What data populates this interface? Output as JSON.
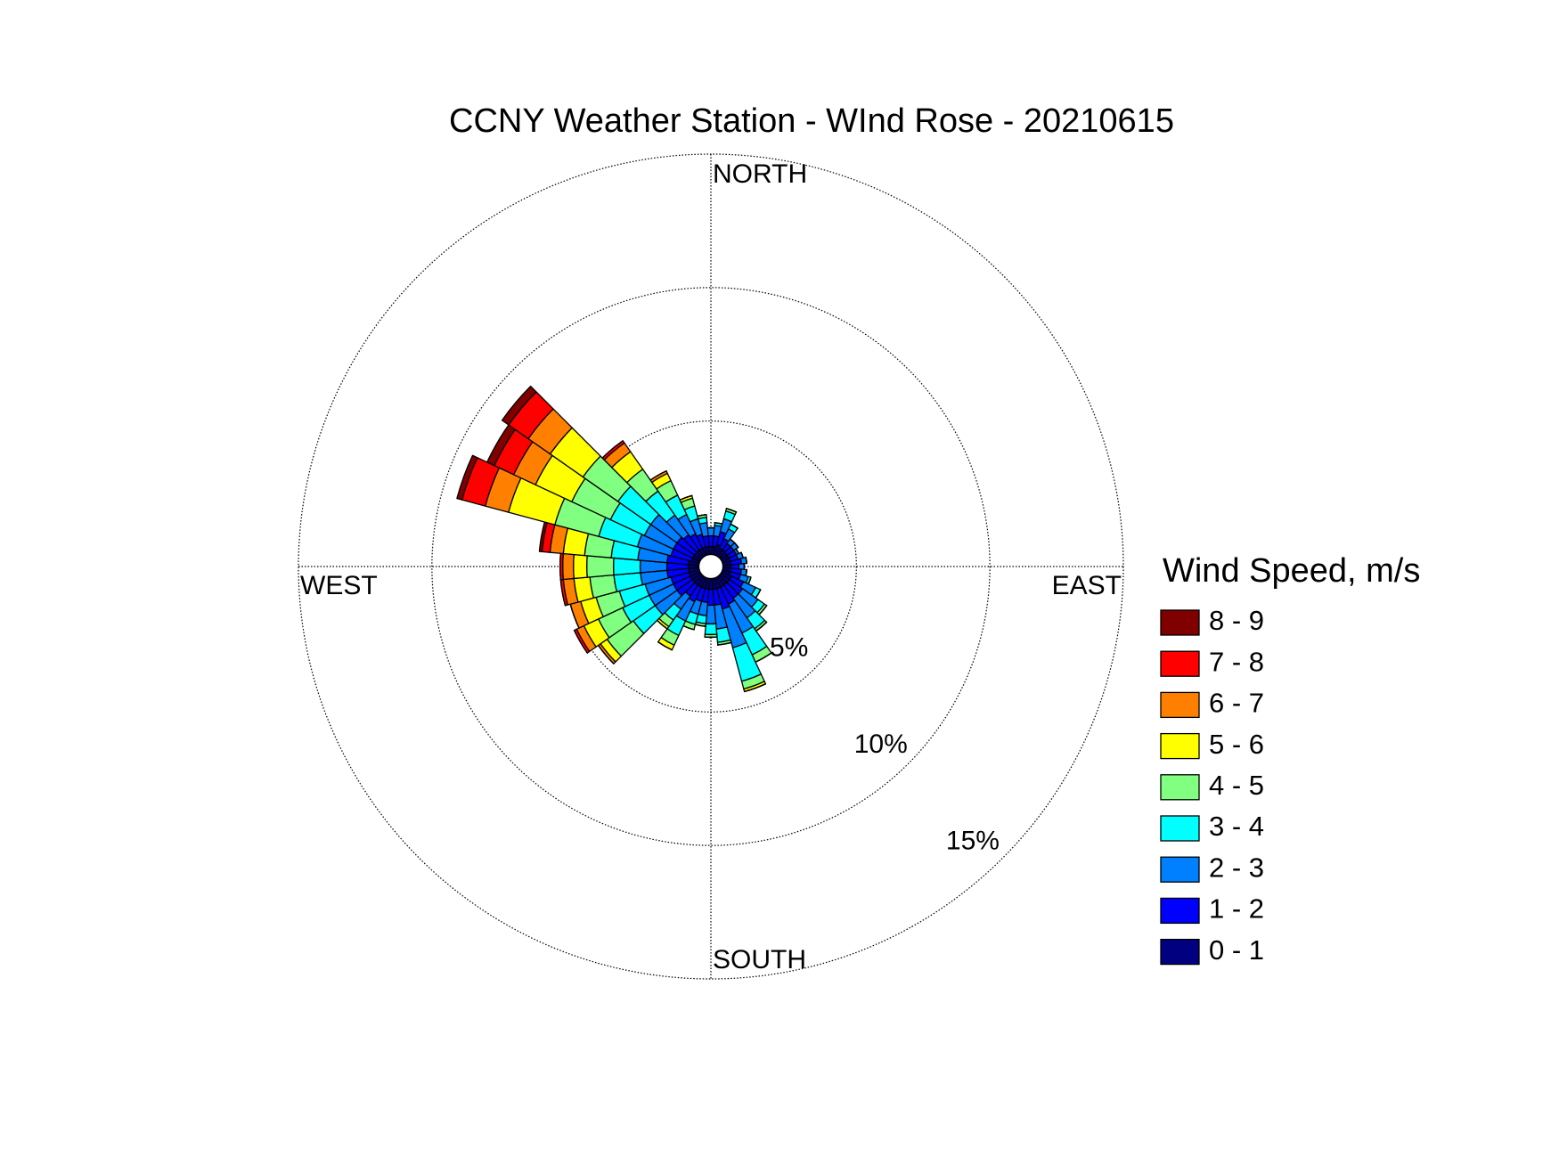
{
  "chart_data": {
    "type": "windrose",
    "title": "CCNY Weather Station - WInd Rose - 20210615",
    "direction_labels": [
      "NORTH",
      "EAST",
      "SOUTH",
      "WEST"
    ],
    "legend_title": "Wind Speed, m/s",
    "x": [
      0,
      10,
      20,
      30,
      40,
      50,
      60,
      70,
      80,
      90,
      100,
      110,
      120,
      130,
      140,
      150,
      160,
      170,
      180,
      190,
      200,
      210,
      220,
      230,
      240,
      250,
      260,
      270,
      280,
      290,
      300,
      310,
      320,
      330,
      340,
      350
    ],
    "rlim": [
      0,
      15
    ],
    "rticks": [
      {
        "value": 5,
        "label": "5%"
      },
      {
        "value": 10,
        "label": "10%"
      },
      {
        "value": 15,
        "label": "15%"
      }
    ],
    "series": [
      {
        "name": "0 - 1",
        "color": "#000080",
        "values": [
          0.3,
          0.3,
          0.4,
          0.3,
          0.3,
          0.3,
          0.3,
          0.3,
          0.3,
          0.3,
          0.3,
          0.3,
          0.4,
          0.4,
          0.4,
          0.4,
          0.4,
          0.4,
          0.4,
          0.4,
          0.4,
          0.4,
          0.4,
          0.4,
          0.4,
          0.4,
          0.4,
          0.4,
          0.4,
          0.3,
          0.3,
          0.3,
          0.3,
          0.3,
          0.3,
          0.3
        ]
      },
      {
        "name": "1 - 2",
        "color": "#0000ff",
        "values": [
          0.4,
          0.4,
          0.5,
          0.4,
          0.3,
          0.3,
          0.3,
          0.3,
          0.4,
          0.3,
          0.4,
          0.4,
          0.5,
          0.6,
          0.6,
          0.7,
          0.8,
          0.6,
          0.6,
          0.5,
          0.5,
          0.6,
          0.5,
          0.7,
          0.7,
          0.7,
          0.8,
          0.8,
          0.8,
          0.8,
          0.8,
          0.8,
          0.7,
          0.6,
          0.5,
          0.4
        ]
      },
      {
        "name": "2 - 3",
        "color": "#0080ff",
        "values": [
          0.3,
          0.4,
          0.5,
          0.4,
          0.2,
          0.2,
          0.1,
          0.2,
          0.2,
          0.2,
          0.2,
          0.3,
          0.5,
          0.7,
          0.9,
          1.2,
          1.5,
          0.9,
          0.7,
          0.5,
          0.5,
          0.8,
          0.6,
          1.0,
          1.0,
          1.0,
          1.0,
          1.0,
          1.1,
          1.3,
          1.2,
          1.2,
          0.9,
          0.8,
          0.6,
          0.5
        ]
      },
      {
        "name": "3 - 4",
        "color": "#00ffff",
        "values": [
          0,
          0.1,
          0.3,
          0.2,
          0,
          0,
          0,
          0,
          0,
          0,
          0,
          0.1,
          0.2,
          0.3,
          0.5,
          0.9,
          1.3,
          0.5,
          0.4,
          0.3,
          0.4,
          0.6,
          0.5,
          1.0,
          1.1,
          1.0,
          1.0,
          1.0,
          1.0,
          1.5,
          1.4,
          1.5,
          1.1,
          0.8,
          0.5,
          0.2
        ]
      },
      {
        "name": "4 - 5",
        "color": "#80ff80",
        "values": [
          0,
          0,
          0.1,
          0,
          0,
          0,
          0,
          0,
          0,
          0,
          0,
          0,
          0,
          0.1,
          0.1,
          0.3,
          0.3,
          0.1,
          0.1,
          0.1,
          0.2,
          0.4,
          0.3,
          1.2,
          1.0,
          0.9,
          0.9,
          1.0,
          1.0,
          1.7,
          1.6,
          1.6,
          1.0,
          0.6,
          0.3,
          0.1
        ]
      },
      {
        "name": "5 - 6",
        "color": "#ffff00",
        "values": [
          0,
          0,
          0,
          0,
          0,
          0,
          0,
          0,
          0,
          0,
          0,
          0,
          0,
          0,
          0,
          0,
          0.1,
          0,
          0,
          0,
          0,
          0.2,
          0.1,
          0.3,
          0.6,
          0.6,
          0.6,
          0.5,
          0.8,
          1.8,
          1.5,
          1.5,
          0.8,
          0.3,
          0.1,
          0
        ]
      },
      {
        "name": "6 - 7",
        "color": "#ff8000",
        "values": [
          0,
          0,
          0,
          0,
          0,
          0,
          0,
          0,
          0,
          0,
          0,
          0,
          0,
          0,
          0,
          0,
          0,
          0,
          0,
          0,
          0,
          0,
          0,
          0.1,
          0.3,
          0.4,
          0.4,
          0.4,
          0.5,
          0.9,
          0.9,
          1.0,
          0.4,
          0.1,
          0,
          0
        ]
      },
      {
        "name": "7 - 8",
        "color": "#ff0000",
        "values": [
          0,
          0,
          0,
          0,
          0,
          0,
          0,
          0,
          0,
          0,
          0,
          0,
          0,
          0,
          0,
          0,
          0,
          0,
          0,
          0,
          0,
          0,
          0,
          0,
          0.1,
          0,
          0.1,
          0.1,
          0.3,
          0.9,
          0.8,
          0.9,
          0.1,
          0,
          0,
          0
        ]
      },
      {
        "name": "8 - 9",
        "color": "#800000",
        "values": [
          0,
          0,
          0,
          0,
          0,
          0,
          0,
          0,
          0,
          0,
          0,
          0,
          0,
          0,
          0,
          0,
          0,
          0,
          0,
          0,
          0,
          0,
          0,
          0,
          0,
          0,
          0,
          0,
          0.1,
          0.2,
          0.3,
          0.3,
          0,
          0,
          0,
          0
        ]
      }
    ]
  }
}
